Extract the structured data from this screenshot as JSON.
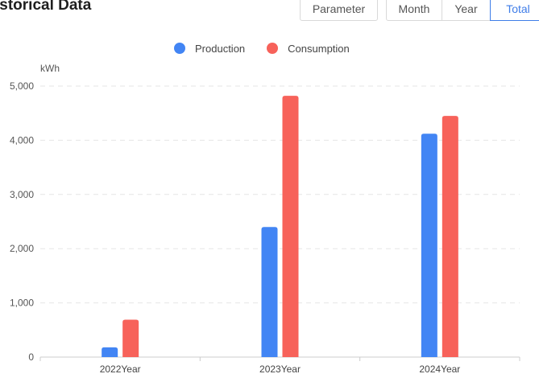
{
  "header": {
    "title": "istorical Data",
    "parameter_label": "Parameter",
    "tabs": [
      {
        "label": "Month",
        "active": false
      },
      {
        "label": "Year",
        "active": false
      },
      {
        "label": "Total",
        "active": true
      }
    ]
  },
  "colors": {
    "accent": "#3f7de8",
    "production": "#4285f4",
    "consumption": "#f7625a"
  },
  "chart_data": {
    "type": "bar",
    "unit_label": "kWh",
    "categories": [
      "2022Year",
      "2023Year",
      "2024Year"
    ],
    "series": [
      {
        "name": "Production",
        "values": [
          180,
          2400,
          4120
        ]
      },
      {
        "name": "Consumption",
        "values": [
          690,
          4820,
          4450
        ]
      }
    ],
    "ylim": [
      0,
      5000
    ],
    "yticks": [
      0,
      1000,
      2000,
      3000,
      4000,
      5000
    ],
    "ytick_labels": [
      "0",
      "1,000",
      "2,000",
      "3,000",
      "4,000",
      "5,000"
    ],
    "grid": true,
    "legend_position": "top-center"
  }
}
